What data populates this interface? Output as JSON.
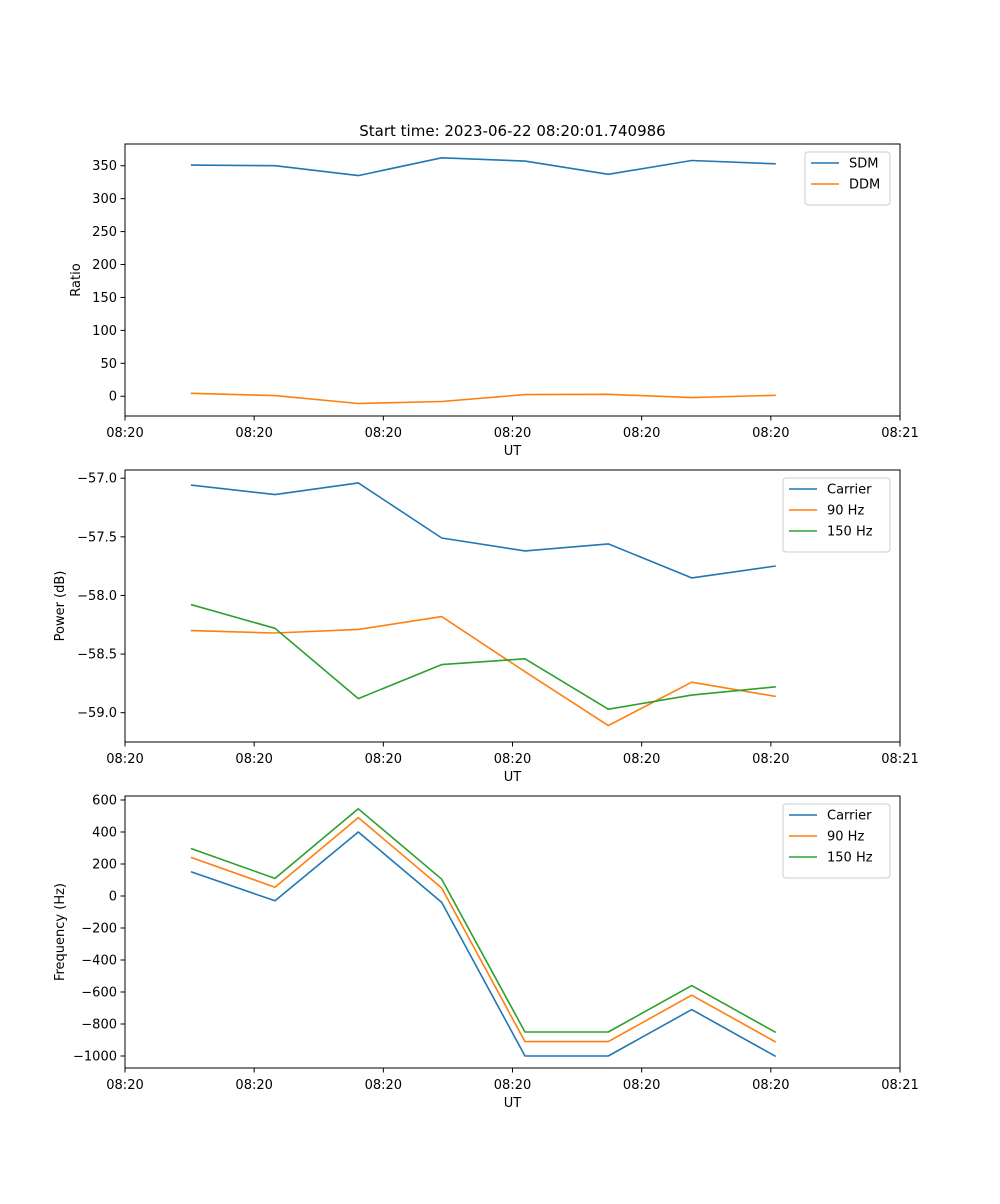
{
  "figure": {
    "title": "Start time: 2023-06-22 08:20:01.740986"
  },
  "chart_data": [
    {
      "type": "line",
      "title": "Start time: 2023-06-22 08:20:01.740986",
      "xlabel": "UT",
      "ylabel": "Ratio",
      "x": [
        1,
        2,
        3,
        4,
        5,
        6,
        7,
        8
      ],
      "xlim": [
        0.2,
        9.5
      ],
      "xticks": [
        0.2,
        1.75,
        3.3,
        4.85,
        6.4,
        7.95,
        9.5
      ],
      "xtick_labels": [
        "08:20",
        "08:20",
        "08:20",
        "08:20",
        "08:20",
        "08:20",
        "08:21"
      ],
      "ylim": [
        -30,
        383
      ],
      "yticks": [
        0,
        50,
        100,
        150,
        200,
        250,
        300,
        350
      ],
      "ytick_labels": [
        "0",
        "50",
        "100",
        "150",
        "200",
        "250",
        "300",
        "350"
      ],
      "legend_position": "upper-right",
      "series": [
        {
          "name": "SDM",
          "color": "#1f77b4",
          "values": [
            351,
            350,
            335,
            362,
            357,
            337,
            358,
            353
          ]
        },
        {
          "name": "DDM",
          "color": "#ff7f0e",
          "values": [
            4.5,
            1,
            -11,
            -8,
            2.5,
            3,
            -2,
            1.5
          ]
        }
      ]
    },
    {
      "type": "line",
      "xlabel": "UT",
      "ylabel": "Power (dB)",
      "x": [
        1,
        2,
        3,
        4,
        5,
        6,
        7,
        8
      ],
      "xlim": [
        0.2,
        9.5
      ],
      "xticks": [
        0.2,
        1.75,
        3.3,
        4.85,
        6.4,
        7.95,
        9.5
      ],
      "xtick_labels": [
        "08:20",
        "08:20",
        "08:20",
        "08:20",
        "08:20",
        "08:20",
        "08:21"
      ],
      "ylim": [
        -59.25,
        -56.93
      ],
      "yticks": [
        -59.0,
        -58.5,
        -58.0,
        -57.5,
        -57.0
      ],
      "ytick_labels": [
        "−59.0",
        "−58.5",
        "−58.0",
        "−57.5",
        "−57.0"
      ],
      "legend_position": "upper-right",
      "series": [
        {
          "name": "Carrier",
          "color": "#1f77b4",
          "values": [
            -57.06,
            -57.14,
            -57.04,
            -57.51,
            -57.62,
            -57.56,
            -57.85,
            -57.75
          ]
        },
        {
          "name": "90 Hz",
          "color": "#ff7f0e",
          "values": [
            -58.3,
            -58.32,
            -58.29,
            -58.18,
            -58.65,
            -59.11,
            -58.74,
            -58.86
          ]
        },
        {
          "name": "150 Hz",
          "color": "#2ca02c",
          "values": [
            -58.08,
            -58.28,
            -58.88,
            -58.59,
            -58.54,
            -58.97,
            -58.85,
            -58.78
          ]
        }
      ]
    },
    {
      "type": "line",
      "xlabel": "UT",
      "ylabel": "Frequency (Hz)",
      "x": [
        1,
        2,
        3,
        4,
        5,
        6,
        7,
        8
      ],
      "xlim": [
        0.2,
        9.5
      ],
      "xticks": [
        0.2,
        1.75,
        3.3,
        4.85,
        6.4,
        7.95,
        9.5
      ],
      "xtick_labels": [
        "08:20",
        "08:20",
        "08:20",
        "08:20",
        "08:20",
        "08:20",
        "08:21"
      ],
      "ylim": [
        -1075,
        625
      ],
      "yticks": [
        -1000,
        -800,
        -600,
        -400,
        -200,
        0,
        200,
        400,
        600
      ],
      "ytick_labels": [
        "−1000",
        "−800",
        "−600",
        "−400",
        "−200",
        "0",
        "200",
        "400",
        "600"
      ],
      "legend_position": "upper-right",
      "series": [
        {
          "name": "Carrier",
          "color": "#1f77b4",
          "values": [
            150,
            -30,
            400,
            -40,
            -1000,
            -1000,
            -710,
            -1000
          ]
        },
        {
          "name": "90 Hz",
          "color": "#ff7f0e",
          "values": [
            240,
            55,
            490,
            50,
            -910,
            -910,
            -620,
            -910
          ]
        },
        {
          "name": "150 Hz",
          "color": "#2ca02c",
          "values": [
            295,
            110,
            545,
            105,
            -850,
            -850,
            -560,
            -850
          ]
        }
      ]
    }
  ]
}
